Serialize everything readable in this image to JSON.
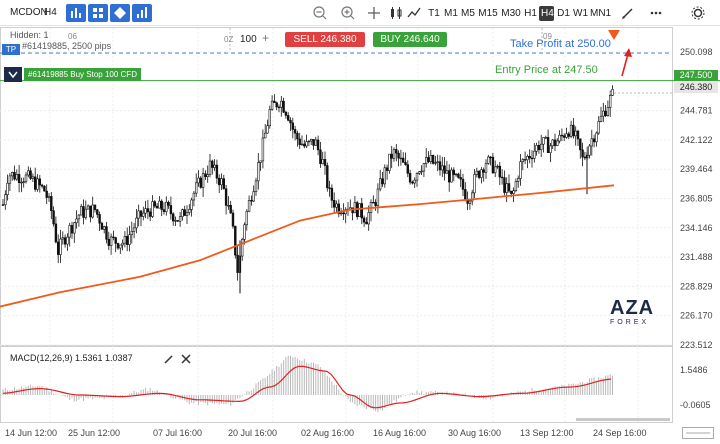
{
  "toolbar": {
    "symbol": "MCDON",
    "timeframe": "H4",
    "timeframes": [
      "T1",
      "M1",
      "M5",
      "M15",
      "M30",
      "H1",
      "H4",
      "D1",
      "W1",
      "MN1"
    ],
    "active_timeframe": "H4"
  },
  "chart": {
    "hidden_label": "Hidden: 1",
    "order_info": "#61419885, 2500 pips",
    "qty_prefix": "0Z",
    "qty_value": "100",
    "qty_plus": "+",
    "sell_label": "SELL 246.380",
    "buy_label": "BUY 246.640",
    "tp_tag": "TP",
    "order_tag": "#61419885 Buy Stop 100 CFD",
    "take_profit_label": "Take Profit at 250.00",
    "entry_label": "Entry Price at 247.50",
    "top_numbers": [
      "06",
      "09"
    ],
    "price_axis": [
      "250.098",
      "247.500",
      "246.380",
      "244.781",
      "242.122",
      "239.464",
      "236.805",
      "234.146",
      "231.488",
      "228.829",
      "226.170",
      "223.512"
    ],
    "badge_entry": "247.500",
    "badge_bid": "246.380",
    "time_axis": [
      "14 Jun 12:00",
      "25 Jun 12:00",
      "07 Jul 16:00",
      "20 Jul 16:00",
      "02 Aug 16:00",
      "16 Aug 16:00",
      "30 Aug 16:00",
      "13 Sep 12:00",
      "24 Sep 16:00"
    ],
    "macd_label": "MACD(12,26,9) 1.5361 1.0387",
    "macd_axis": [
      "1.5486",
      "-0.0605"
    ],
    "logo_text": "AZA",
    "logo_sub": "FOREX",
    "colors": {
      "sell": "#e04040",
      "buy": "#3aa23a",
      "accent": "#2f6fd1",
      "ma": "#f05a1a",
      "macd_signal": "#e02020"
    }
  }
}
